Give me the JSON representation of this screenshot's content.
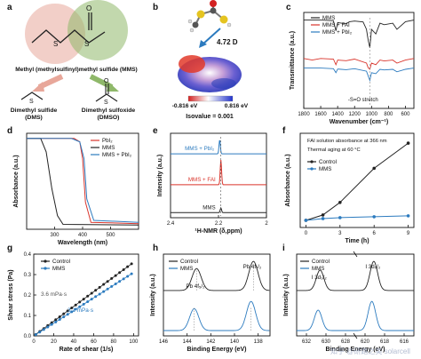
{
  "panel_letters": [
    "a",
    "b",
    "c",
    "d",
    "e",
    "f",
    "g",
    "h",
    "i"
  ],
  "colors": {
    "black": "#222222",
    "red": "#d9342b",
    "blue": "#2c7bbf",
    "light_blue": "#7fb6e0",
    "green": "#8fb86a",
    "pink": "#e8a79a"
  },
  "panel_a": {
    "mms_name": "Methyl (methylsulfinyl)methyl sulfide (MMS)",
    "dms_name": "Dimethyl sulfide",
    "dms_abbr": "(DMS)",
    "dmso_name": "Dimethyl sulfoxide",
    "dmso_abbr": "(DMSO)",
    "S": "S",
    "O": "O"
  },
  "panel_b": {
    "dipole": "4.72 D",
    "scale_min": "-0.816 eV",
    "scale_max": "0.816 eV",
    "isovalue": "Isovalue = 0.001"
  },
  "chart_data": [
    {
      "panel": "c",
      "type": "line",
      "xlabel": "Wavenumber (cm⁻¹)",
      "ylabel": "Transmittance (a.u.)",
      "xlim": [
        1800,
        500
      ],
      "xticks": [
        1800,
        1600,
        1400,
        1200,
        1000,
        800,
        600
      ],
      "annotation": "-S=O stretch",
      "series": [
        {
          "name": "MMS",
          "color": "black",
          "offset": 0.92,
          "x": [
            1800,
            1600,
            1450,
            1420,
            1400,
            1300,
            1260,
            1200,
            1100,
            1060,
            1040,
            1020,
            1000,
            950,
            900,
            850,
            750,
            700,
            680,
            600,
            500
          ],
          "y": [
            0,
            0,
            -0.02,
            -0.35,
            -0.08,
            -0.12,
            -0.05,
            -0.03,
            -0.06,
            -0.3,
            -0.65,
            -0.9,
            -0.3,
            -0.45,
            -0.1,
            -0.15,
            -0.1,
            -0.3,
            -0.25,
            -0.05,
            0
          ]
        },
        {
          "name": "MMS + FAI",
          "color": "red",
          "offset": 0.52,
          "x": [
            1800,
            1700,
            1600,
            1450,
            1420,
            1400,
            1300,
            1200,
            1060,
            1040,
            1020,
            1000,
            950,
            900,
            850,
            750,
            700,
            600,
            500
          ],
          "y": [
            0,
            -0.05,
            0,
            -0.02,
            -0.2,
            -0.05,
            -0.07,
            -0.02,
            -0.15,
            -0.3,
            -0.35,
            -0.15,
            -0.2,
            -0.05,
            -0.08,
            -0.05,
            -0.15,
            -0.05,
            0
          ]
        },
        {
          "name": "MMS + PbI₂",
          "color": "blue",
          "offset": 0.42,
          "x": [
            1800,
            1600,
            1450,
            1420,
            1400,
            1300,
            1200,
            1060,
            1040,
            1020,
            1000,
            950,
            900,
            850,
            750,
            700,
            600,
            500
          ],
          "y": [
            0,
            0,
            -0.02,
            -0.15,
            -0.03,
            -0.05,
            -0.02,
            -0.1,
            -0.25,
            -0.4,
            -0.15,
            -0.18,
            -0.04,
            -0.06,
            -0.04,
            -0.12,
            -0.04,
            0
          ]
        }
      ]
    },
    {
      "panel": "d",
      "type": "line",
      "xlabel": "Wavelength (nm)",
      "ylabel": "Absorbance (a.u.)",
      "xlim": [
        200,
        600
      ],
      "xticks": [
        300,
        400,
        500
      ],
      "series": [
        {
          "name": "PbI₂",
          "color": "red",
          "x": [
            200,
            300,
            340,
            370,
            390,
            400,
            410,
            430,
            600
          ],
          "y": [
            1.3,
            1.3,
            1.3,
            1.3,
            1.25,
            1.0,
            0.35,
            0.05,
            0.03
          ]
        },
        {
          "name": "MMS",
          "color": "black",
          "x": [
            200,
            250,
            270,
            290,
            310,
            330,
            600
          ],
          "y": [
            1.3,
            1.3,
            1.1,
            0.55,
            0.15,
            0.02,
            0.01
          ]
        },
        {
          "name": "MMS + PbI₂",
          "color": "blue",
          "x": [
            200,
            300,
            360,
            390,
            405,
            415,
            440,
            600
          ],
          "y": [
            1.3,
            1.3,
            1.3,
            1.25,
            1.0,
            0.4,
            0.08,
            0.05
          ]
        }
      ]
    },
    {
      "panel": "e",
      "type": "line",
      "xlabel": "¹H-NMR (δ,ppm)",
      "ylabel": "Intensity (a.u.)",
      "xlim": [
        2.4,
        2.0
      ],
      "xticks": [
        2.4,
        2.2,
        2.0
      ],
      "series": [
        {
          "name": "MMS + PbI₂",
          "color": "blue",
          "peak": 2.195,
          "offset": 0.78,
          "height": 0.18
        },
        {
          "name": "MMS + FAI",
          "color": "red",
          "peak": 2.19,
          "offset": 0.38,
          "height": 0.32
        },
        {
          "name": "MMS",
          "color": "black",
          "peak": 2.19,
          "offset": 0.02,
          "height": 0.06
        }
      ]
    },
    {
      "panel": "f",
      "type": "line",
      "xlabel": "Time (h)",
      "ylabel": "Absorbance (a.u.)",
      "xlim": [
        -0.5,
        9.5
      ],
      "xticks": [
        0,
        3,
        6,
        9
      ],
      "annotations": [
        "FAI solution absorbance at 366 nm",
        "Thermal aging at 60 °C"
      ],
      "series": [
        {
          "name": "Control",
          "color": "black",
          "x": [
            0,
            1.5,
            3,
            6,
            9
          ],
          "y": [
            0.02,
            0.08,
            0.22,
            0.6,
            0.88
          ]
        },
        {
          "name": "MMS",
          "color": "blue",
          "x": [
            0,
            1.5,
            3,
            6,
            9
          ],
          "y": [
            0.02,
            0.04,
            0.05,
            0.06,
            0.07
          ]
        }
      ]
    },
    {
      "panel": "g",
      "type": "scatter",
      "xlabel": "Rate of shear (1/s)",
      "ylabel": "Shear stress (Pa)",
      "xlim": [
        0,
        105
      ],
      "ylim": [
        0,
        0.4
      ],
      "xticks": [
        0,
        20,
        40,
        60,
        80,
        100
      ],
      "yticks": [
        0.0,
        0.1,
        0.2,
        0.3,
        0.4
      ],
      "annotations": [
        "3.6 mPa·s",
        "3.1 mPa·s"
      ],
      "series": [
        {
          "name": "Control",
          "color": "black",
          "slope": 0.0036
        },
        {
          "name": "MMS",
          "color": "blue",
          "slope": 0.0031
        }
      ]
    },
    {
      "panel": "h",
      "type": "line",
      "xlabel": "Binding Energy (eV)",
      "ylabel": "Intensity (a.u.)",
      "xlim": [
        146,
        137
      ],
      "xticks": [
        146,
        144,
        142,
        140,
        138
      ],
      "peak_labels": [
        "Pb 4f₅/₂",
        "Pb 4f₇/₂"
      ],
      "series": [
        {
          "name": "Control",
          "color": "black",
          "peaks": [
            143.2,
            138.4
          ],
          "offset": 0.55
        },
        {
          "name": "MMS",
          "color": "blue",
          "peaks": [
            143.4,
            138.6
          ],
          "offset": 0.0
        }
      ]
    },
    {
      "panel": "i",
      "type": "line",
      "xlabel": "Binding Energy (eV)",
      "ylabel": "Intensity (a.u.)",
      "xticks": [
        632,
        630,
        628,
        620,
        618,
        616
      ],
      "peak_labels": [
        "I 3d₃/₂",
        "I 3d₅/₂"
      ],
      "series": [
        {
          "name": "Control",
          "color": "black",
          "offset": 0.55
        },
        {
          "name": "MMS",
          "color": "blue",
          "offset": 0.0
        }
      ]
    }
  ],
  "watermark": "知乎 @研路之美 solarcell"
}
